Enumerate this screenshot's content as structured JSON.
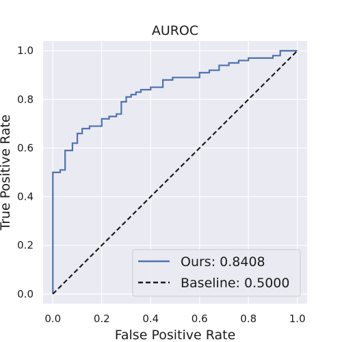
{
  "chart_data": {
    "type": "line",
    "title": "AUROC",
    "xlabel": "False Positive Rate",
    "ylabel": "True Positive Rate",
    "xlim": [
      -0.04,
      1.04
    ],
    "ylim": [
      -0.04,
      1.04
    ],
    "xticks": [
      "0.0",
      "0.2",
      "0.4",
      "0.6",
      "0.8",
      "1.0"
    ],
    "yticks": [
      "0.0",
      "0.2",
      "0.4",
      "0.6",
      "0.8",
      "1.0"
    ],
    "grid": true,
    "legend_position": "lower-right",
    "series": [
      {
        "name": "Ours: 0.8408",
        "color": "#4c72b0",
        "style": "solid",
        "x": [
          0.0,
          0.0,
          0.03,
          0.03,
          0.05,
          0.05,
          0.08,
          0.08,
          0.1,
          0.1,
          0.12,
          0.12,
          0.15,
          0.15,
          0.17,
          0.17,
          0.2,
          0.2,
          0.23,
          0.23,
          0.26,
          0.26,
          0.28,
          0.28,
          0.3,
          0.3,
          0.32,
          0.32,
          0.34,
          0.34,
          0.36,
          0.36,
          0.38,
          0.38,
          0.4,
          0.4,
          0.42,
          0.42,
          0.45,
          0.45,
          0.49,
          0.49,
          0.52,
          0.52,
          0.55,
          0.55,
          0.58,
          0.58,
          0.6,
          0.6,
          0.64,
          0.64,
          0.68,
          0.68,
          0.72,
          0.72,
          0.76,
          0.76,
          0.8,
          0.8,
          0.85,
          0.85,
          0.9,
          0.9,
          0.93,
          0.93,
          1.0
        ],
        "y": [
          0.0,
          0.5,
          0.5,
          0.51,
          0.51,
          0.59,
          0.59,
          0.62,
          0.62,
          0.66,
          0.66,
          0.68,
          0.68,
          0.69,
          0.69,
          0.69,
          0.69,
          0.72,
          0.72,
          0.73,
          0.73,
          0.74,
          0.74,
          0.79,
          0.79,
          0.81,
          0.81,
          0.82,
          0.82,
          0.83,
          0.83,
          0.84,
          0.84,
          0.84,
          0.84,
          0.85,
          0.85,
          0.85,
          0.85,
          0.88,
          0.88,
          0.89,
          0.89,
          0.89,
          0.89,
          0.89,
          0.89,
          0.89,
          0.89,
          0.91,
          0.91,
          0.92,
          0.92,
          0.94,
          0.94,
          0.95,
          0.95,
          0.96,
          0.96,
          0.97,
          0.97,
          0.97,
          0.97,
          0.98,
          0.98,
          1.0,
          1.0
        ]
      },
      {
        "name": "Baseline: 0.5000",
        "color": "#1a1a1a",
        "style": "dashed",
        "x": [
          0.0,
          1.0
        ],
        "y": [
          0.0,
          1.0
        ]
      }
    ]
  }
}
